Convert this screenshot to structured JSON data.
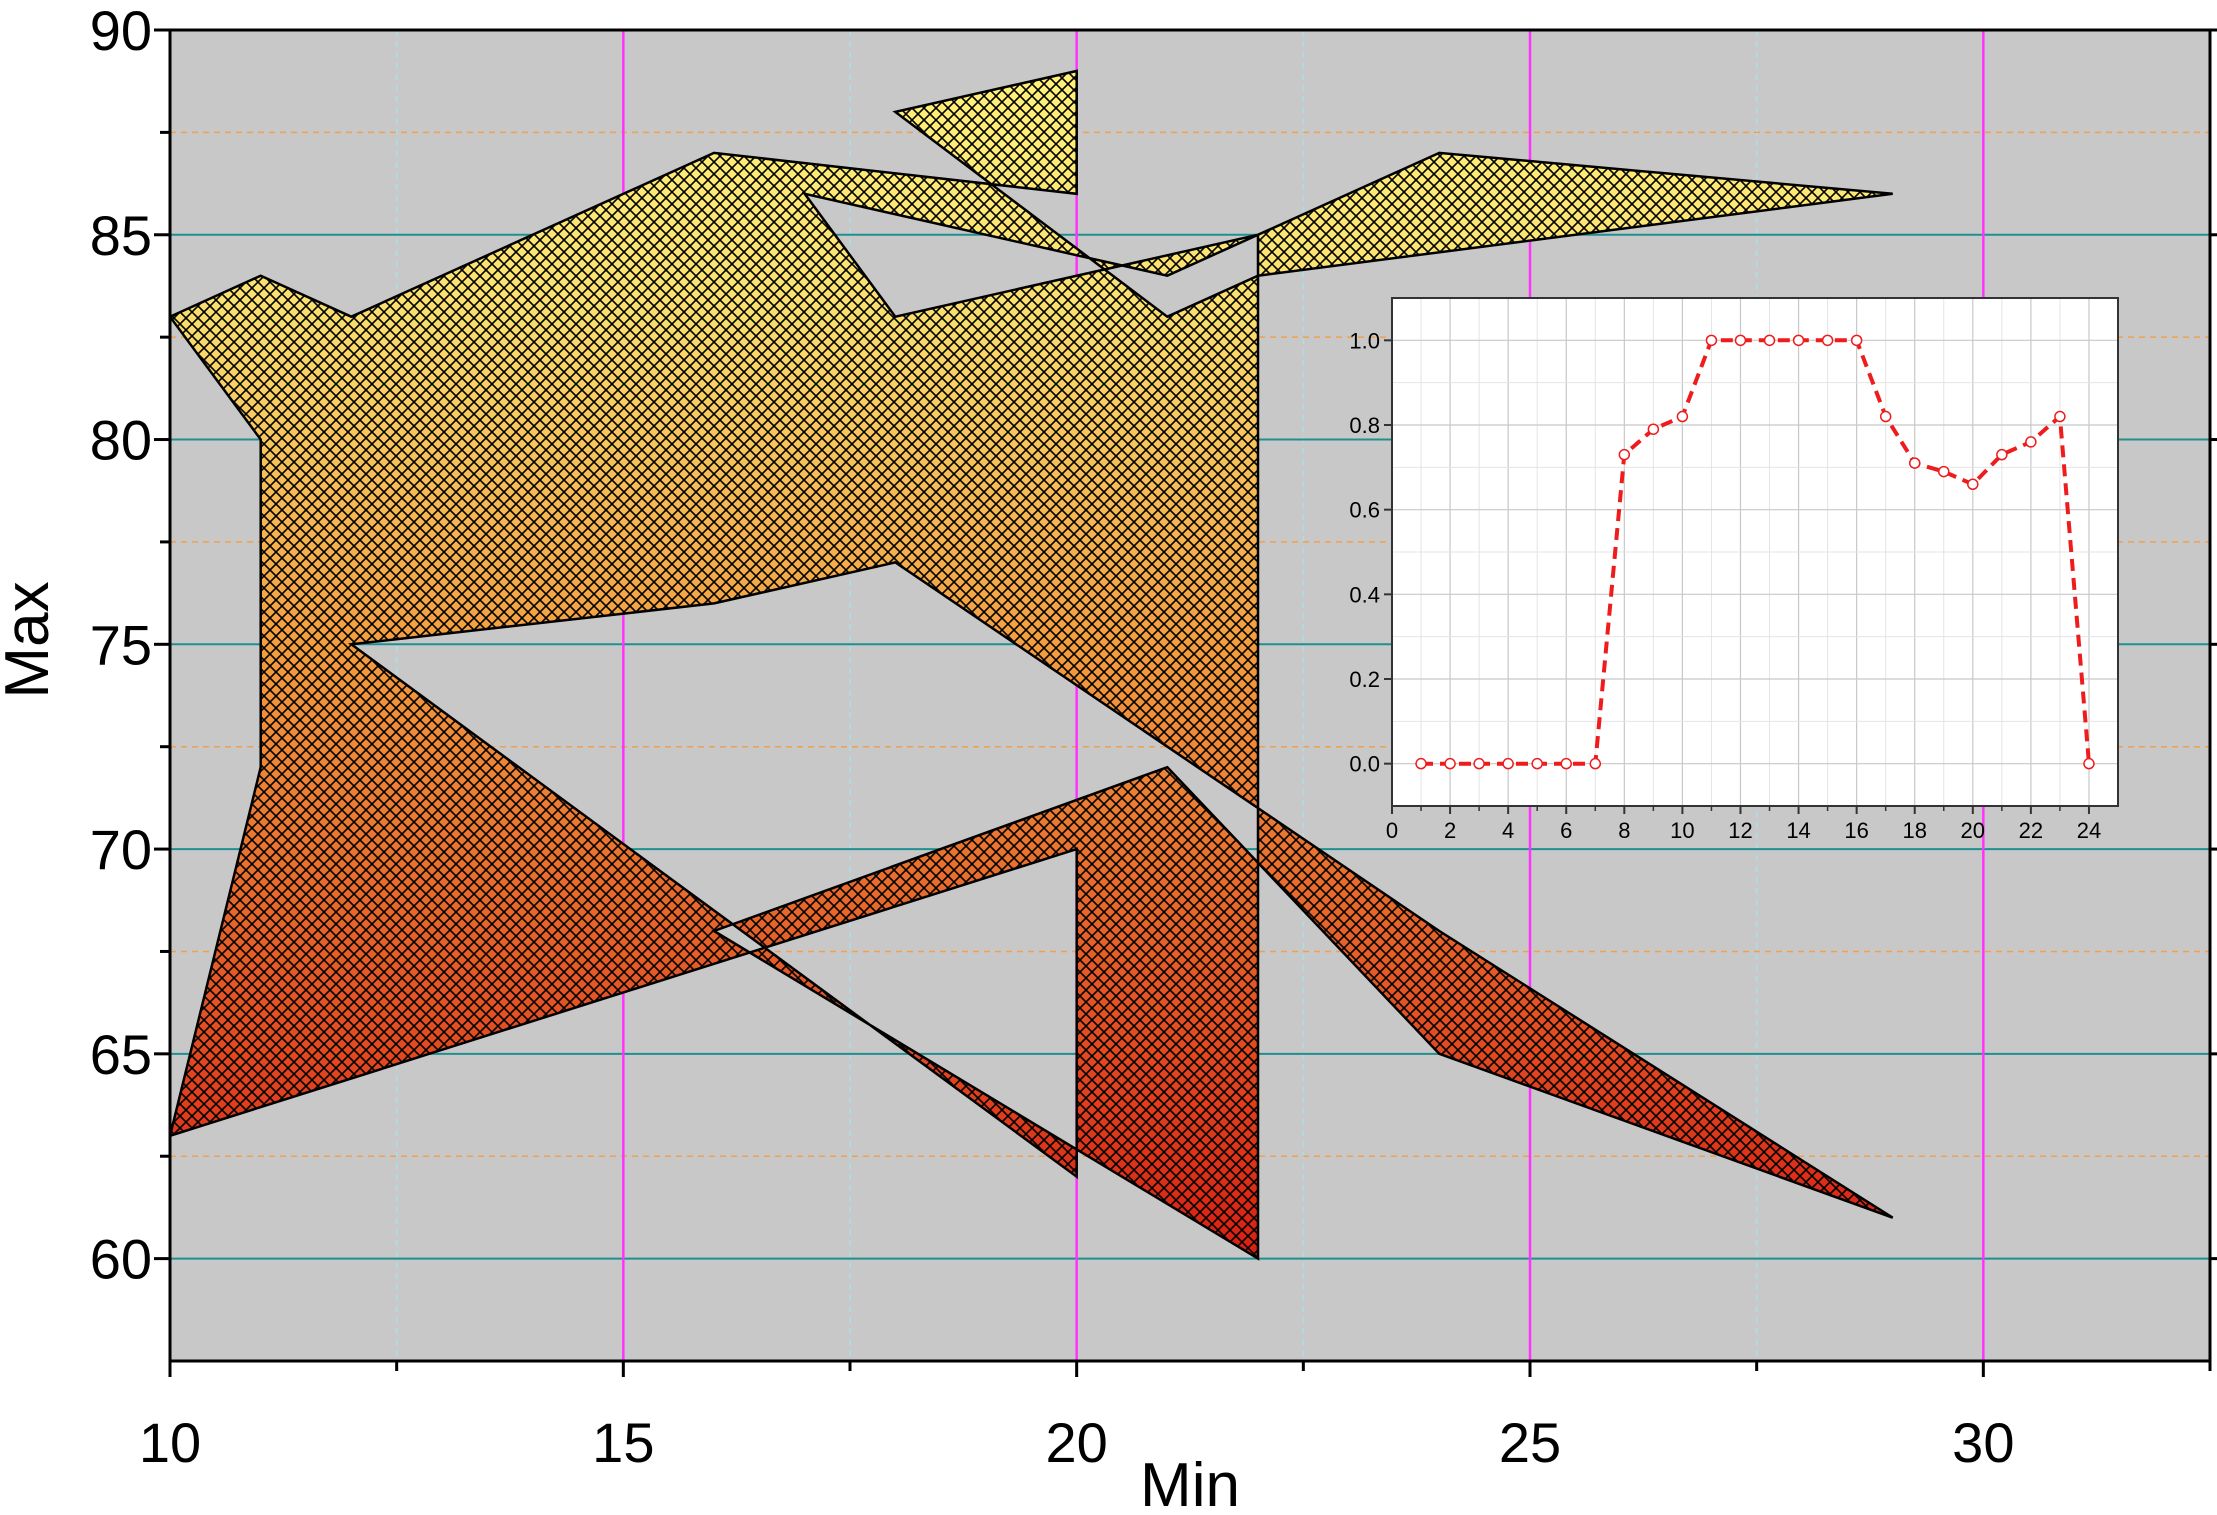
{
  "chart_data": [
    {
      "type": "area",
      "xlabel": "Min",
      "ylabel": "Max",
      "xlim": [
        10,
        32.5
      ],
      "ylim": [
        57.5,
        90
      ],
      "xticks": [
        "10",
        "15",
        "20",
        "25",
        "30"
      ],
      "xtick_values": [
        10,
        15,
        20,
        25,
        30
      ],
      "yticks": [
        "60",
        "65",
        "70",
        "75",
        "80",
        "85",
        "90"
      ],
      "ytick_values": [
        60,
        65,
        70,
        75,
        80,
        85,
        90
      ],
      "grid": "on",
      "colors": {
        "background": "#c8c8c8",
        "major_x_grid": "#ff33ff",
        "major_y_grid": "#1f8f8f",
        "minor_y_grid": "#f0a050",
        "minor_x_grid": "#a8e0e8",
        "fill_top": "#fff27a",
        "fill_mid": "#f39a3d",
        "fill_bottom": "#d81e12",
        "outline": "#000000"
      },
      "fill_pattern": "crosshatch",
      "series": [
        {
          "points": [
            [
              10,
              83
            ],
            [
              11,
              80
            ],
            [
              11,
              72
            ],
            [
              10,
              63
            ],
            [
              20,
              70
            ],
            [
              20,
              62
            ],
            [
              12,
              75
            ],
            [
              16,
              76
            ],
            [
              18,
              77
            ],
            [
              22,
              71
            ],
            [
              22,
              60
            ],
            [
              16,
              68
            ],
            [
              21,
              72
            ],
            [
              24,
              65
            ],
            [
              29,
              61
            ],
            [
              24,
              68
            ],
            [
              22,
              71
            ],
            [
              22,
              85
            ],
            [
              18,
              83
            ],
            [
              17,
              86
            ],
            [
              21,
              84
            ],
            [
              24,
              87
            ],
            [
              29,
              86
            ],
            [
              22,
              84
            ],
            [
              21,
              83
            ],
            [
              18,
              88
            ],
            [
              20,
              89
            ],
            [
              20,
              86
            ],
            [
              16,
              87
            ],
            [
              12,
              83
            ],
            [
              11,
              84
            ]
          ]
        }
      ]
    },
    {
      "type": "line",
      "inset": true,
      "xlim": [
        0,
        25
      ],
      "ylim": [
        -0.1,
        1.1
      ],
      "xticks": [
        "0",
        "2",
        "4",
        "6",
        "8",
        "10",
        "12",
        "14",
        "16",
        "18",
        "20",
        "22",
        "24"
      ],
      "xtick_values": [
        0,
        2,
        4,
        6,
        8,
        10,
        12,
        14,
        16,
        18,
        20,
        22,
        24
      ],
      "yticks": [
        "0.0",
        "0.2",
        "0.4",
        "0.6",
        "0.8",
        "1.0"
      ],
      "ytick_values": [
        0,
        0.2,
        0.4,
        0.6,
        0.8,
        1.0
      ],
      "grid": "on",
      "line_style": "dashed",
      "marker": "open-circle",
      "colors": {
        "line": "#ee1c1c",
        "background": "#ffffff",
        "grid": "#c8c8c8"
      },
      "series": [
        {
          "x": [
            1,
            2,
            3,
            4,
            5,
            6,
            7,
            8,
            9,
            10,
            11,
            12,
            13,
            14,
            15,
            16,
            17,
            18,
            19,
            20,
            21,
            22,
            23,
            24
          ],
          "y": [
            0,
            0,
            0,
            0,
            0,
            0,
            0,
            0.73,
            0.79,
            0.82,
            1.0,
            1.0,
            1.0,
            1.0,
            1.0,
            1.0,
            0.82,
            0.71,
            0.69,
            0.66,
            0.73,
            0.76,
            0.82,
            0
          ]
        }
      ]
    }
  ]
}
